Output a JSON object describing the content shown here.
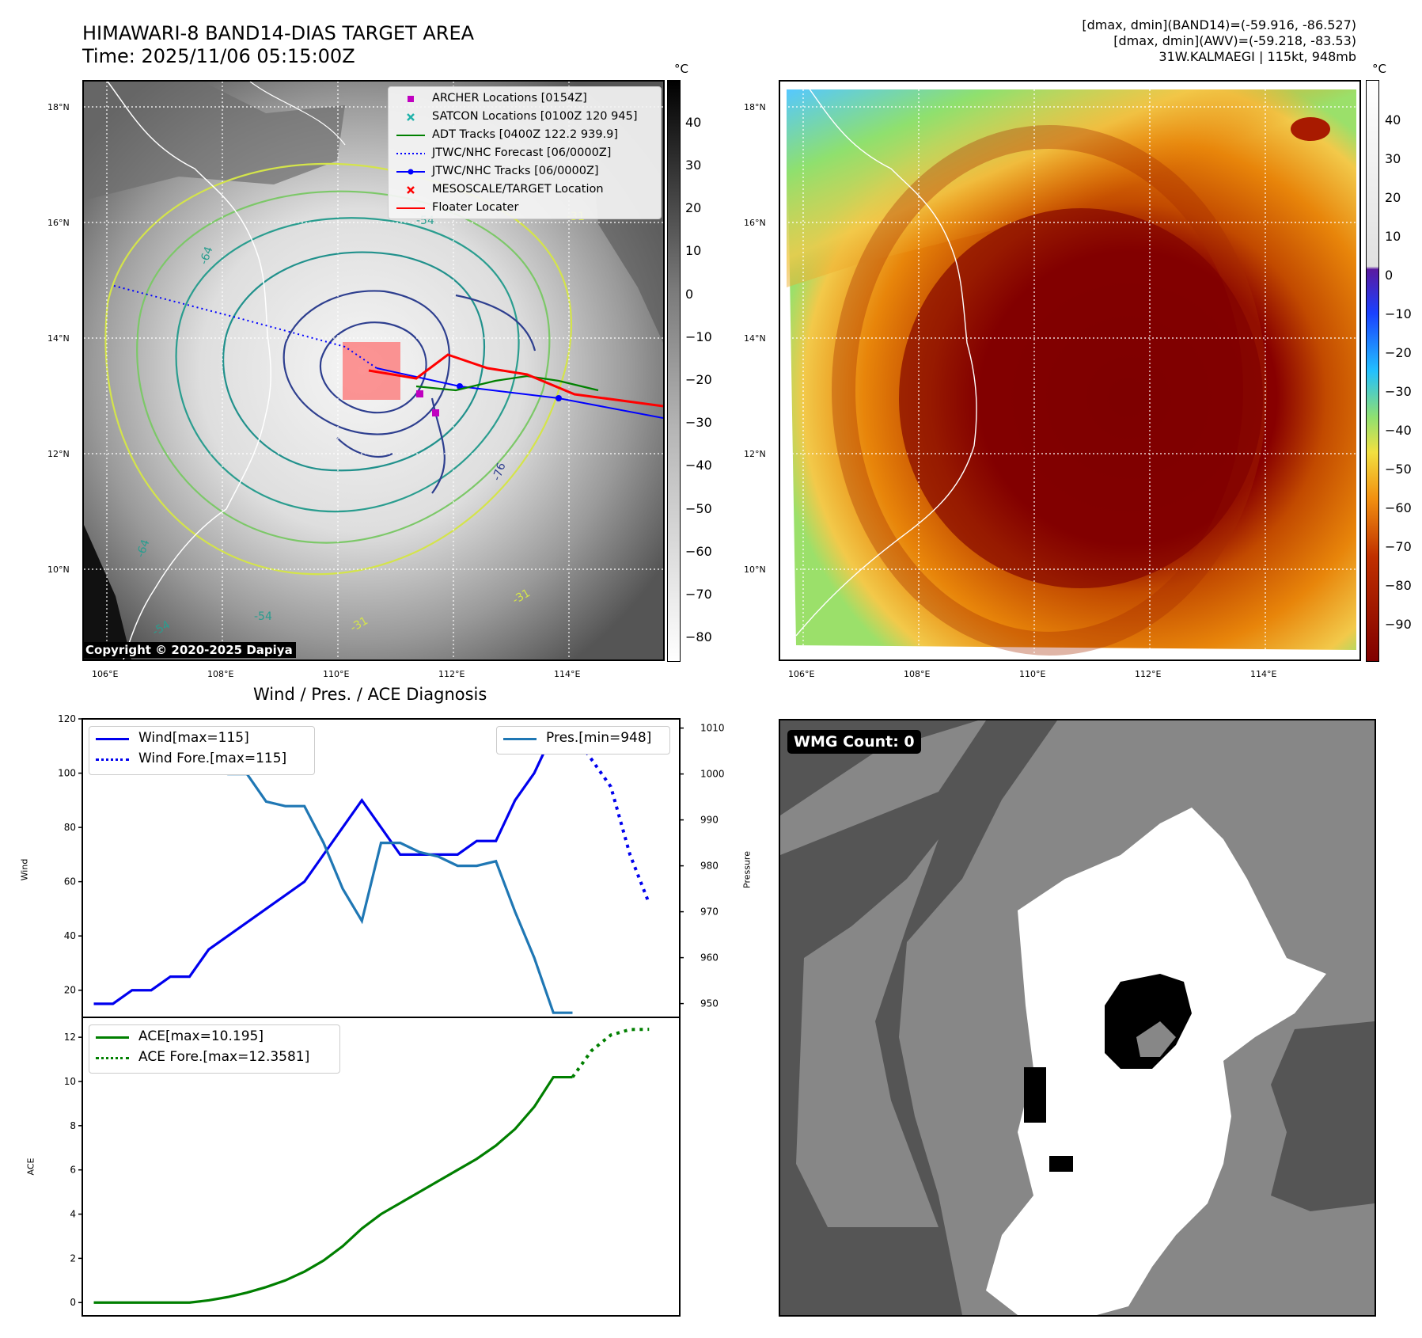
{
  "header": {
    "title_line1": "HIMAWARI-8 BAND14-DIAS TARGET AREA",
    "title_line2": "Time: 2025/11/06 05:15:00Z",
    "meta_line1": "[dmax, dmin](BAND14)=(-59.916, -86.527)",
    "meta_line2": "[dmax, dmin](AWV)=(-59.218, -83.53)",
    "meta_line3": "31W.KALMAEGI | 115kt, 948mb"
  },
  "map_left": {
    "lat_ticks": [
      "18°N",
      "16°N",
      "14°N",
      "12°N",
      "10°N"
    ],
    "lon_ticks": [
      "106°E",
      "108°E",
      "110°E",
      "112°E",
      "114°E"
    ],
    "colorbar_unit": "°C",
    "colorbar_ticks": [
      "40",
      "30",
      "20",
      "10",
      "0",
      "−10",
      "−20",
      "−30",
      "−40",
      "−50",
      "−60",
      "−70",
      "−80"
    ],
    "copyright": "Copyright © 2020-2025 Dapiya",
    "contour_labels": [
      "-76",
      "-64",
      "-54",
      "-31",
      "-54",
      "-31",
      "-64",
      "-54",
      "-31"
    ],
    "legend": [
      {
        "label": "ARCHER Locations [0154Z]",
        "color": "#c000c0",
        "marker": "square"
      },
      {
        "label": "SATCON Locations [0100Z 120 945]",
        "color": "#20b2aa",
        "marker": "x"
      },
      {
        "label": "ADT Tracks [0400Z 122.2 939.9]",
        "color": "#008000",
        "marker": "line"
      },
      {
        "label": "JTWC/NHC Forecast [06/0000Z]",
        "color": "#0000ff",
        "marker": "dotted"
      },
      {
        "label": "JTWC/NHC Tracks [06/0000Z]",
        "color": "#0000ff",
        "marker": "line-dot"
      },
      {
        "label": "MESOSCALE/TARGET Location",
        "color": "#ff0000",
        "marker": "x"
      },
      {
        "label": "Floater Locater",
        "color": "#ff0000",
        "marker": "line"
      }
    ]
  },
  "map_right": {
    "lat_ticks": [
      "18°N",
      "16°N",
      "14°N",
      "12°N",
      "10°N"
    ],
    "lon_ticks": [
      "106°E",
      "108°E",
      "110°E",
      "112°E",
      "114°E"
    ],
    "colorbar_unit": "°C",
    "colorbar_ticks": [
      "40",
      "30",
      "20",
      "10",
      "0",
      "−10",
      "−20",
      "−30",
      "−40",
      "−50",
      "−60",
      "−70",
      "−80",
      "−90"
    ]
  },
  "panel_wmg": {
    "badge": "WMG Count: 0"
  },
  "colors": {
    "wind": "#0000ee",
    "pressure": "#1f77b4",
    "ace": "#007f00"
  },
  "chart_data": [
    {
      "type": "line",
      "title": "Wind / Pres. / ACE Diagnosis",
      "ylabel": "Wind",
      "y2label": "Pressure",
      "ylim": [
        10,
        120
      ],
      "y2lim": [
        947,
        1012
      ],
      "yticks": [
        "120",
        "100",
        "80",
        "60",
        "40",
        "20"
      ],
      "y2ticks": [
        "1010",
        "1000",
        "990",
        "980",
        "970",
        "960",
        "950"
      ],
      "xlim": [
        -0.6,
        30.6
      ],
      "series": [
        {
          "name": "Wind[max=115]",
          "x": [
            0,
            1,
            2,
            3,
            4,
            5,
            6,
            7,
            8,
            9,
            10,
            11,
            12,
            13,
            14,
            15,
            16,
            17,
            18,
            19,
            20,
            21,
            22,
            23,
            24,
            25
          ],
          "values": [
            15,
            15,
            20,
            20,
            25,
            25,
            35,
            40,
            45,
            50,
            55,
            60,
            70,
            80,
            90,
            80,
            70,
            70,
            70,
            70,
            75,
            75,
            90,
            100,
            115,
            115
          ]
        },
        {
          "name": "Wind Fore.[max=115]",
          "x": [
            25,
            26,
            27,
            28,
            29
          ],
          "values": [
            115,
            105,
            95,
            70,
            52
          ]
        },
        {
          "name": "Pres.[min=948]",
          "x": [
            0,
            1,
            2,
            3,
            4,
            5,
            6,
            7,
            8,
            9,
            10,
            11,
            12,
            13,
            14,
            15,
            16,
            17,
            18,
            19,
            20,
            21,
            22,
            23,
            24,
            25
          ],
          "values": [
            1010,
            1008,
            1008,
            1007,
            1006,
            1004,
            1001,
            1000,
            1000,
            994,
            993,
            993,
            985,
            975,
            968,
            985,
            985,
            983,
            982,
            980,
            980,
            981,
            970,
            960,
            948,
            948
          ]
        }
      ]
    },
    {
      "type": "line",
      "ylabel": "ACE",
      "ylim": [
        -0.6,
        12.9
      ],
      "yticks": [
        "12",
        "10",
        "8",
        "6",
        "4",
        "2",
        "0"
      ],
      "xlim": [
        -0.6,
        30.6
      ],
      "series": [
        {
          "name": "ACE[max=10.195]",
          "x": [
            0,
            1,
            2,
            3,
            4,
            5,
            6,
            7,
            8,
            9,
            10,
            11,
            12,
            13,
            14,
            15,
            16,
            17,
            18,
            19,
            20,
            21,
            22,
            23,
            24,
            25
          ],
          "values": [
            0,
            0,
            0,
            0,
            0,
            0,
            0.1,
            0.25,
            0.45,
            0.7,
            1.0,
            1.4,
            1.9,
            2.55,
            3.35,
            4.0,
            4.5,
            5.0,
            5.5,
            6.0,
            6.5,
            7.1,
            7.85,
            8.85,
            10.195,
            10.195
          ]
        },
        {
          "name": "ACE Fore.[max=12.3581]",
          "x": [
            25,
            26,
            27,
            28,
            29
          ],
          "values": [
            10.195,
            11.4,
            12.1,
            12.35,
            12.3581
          ]
        }
      ]
    }
  ]
}
